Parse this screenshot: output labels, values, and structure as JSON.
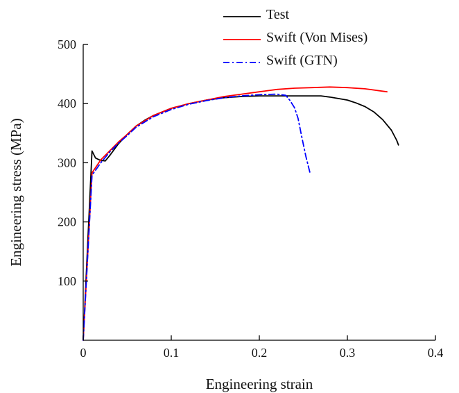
{
  "chart_data": {
    "type": "line",
    "xlabel": "Engineering strain",
    "ylabel": "Engineering stress (MPa)",
    "xlim": [
      0,
      0.4
    ],
    "ylim": [
      0,
      500
    ],
    "x_ticks": [
      0,
      0.1,
      0.2,
      0.3,
      0.4
    ],
    "x_tick_labels": [
      "0",
      "0.1",
      "0.2",
      "0.3",
      "0.4"
    ],
    "y_ticks": [
      100,
      200,
      300,
      400,
      500
    ],
    "y_tick_labels": [
      "100",
      "200",
      "300",
      "400",
      "500"
    ],
    "grid": false,
    "legend_position": "top-right",
    "series": [
      {
        "name": "Test",
        "color": "#000000",
        "dash": "solid",
        "points": [
          [
            0,
            0
          ],
          [
            0.01,
            320
          ],
          [
            0.014,
            308
          ],
          [
            0.018,
            305
          ],
          [
            0.021,
            304
          ],
          [
            0.025,
            303
          ],
          [
            0.03,
            312
          ],
          [
            0.04,
            332
          ],
          [
            0.05,
            348
          ],
          [
            0.06,
            362
          ],
          [
            0.07,
            372
          ],
          [
            0.08,
            380
          ],
          [
            0.1,
            392
          ],
          [
            0.12,
            400
          ],
          [
            0.14,
            406
          ],
          [
            0.16,
            410
          ],
          [
            0.18,
            412
          ],
          [
            0.2,
            413
          ],
          [
            0.22,
            413
          ],
          [
            0.24,
            413
          ],
          [
            0.26,
            413
          ],
          [
            0.27,
            413
          ],
          [
            0.28,
            411
          ],
          [
            0.3,
            406
          ],
          [
            0.31,
            401
          ],
          [
            0.32,
            395
          ],
          [
            0.33,
            386
          ],
          [
            0.34,
            373
          ],
          [
            0.35,
            355
          ],
          [
            0.356,
            338
          ],
          [
            0.358,
            330
          ]
        ]
      },
      {
        "name": "Swift (Von Mises)",
        "color": "#ff0000",
        "dash": "solid",
        "points": [
          [
            0,
            0
          ],
          [
            0.01,
            283
          ],
          [
            0.02,
            305
          ],
          [
            0.03,
            320
          ],
          [
            0.04,
            335
          ],
          [
            0.05,
            348
          ],
          [
            0.06,
            362
          ],
          [
            0.08,
            380
          ],
          [
            0.1,
            392
          ],
          [
            0.12,
            400
          ],
          [
            0.14,
            406
          ],
          [
            0.16,
            412
          ],
          [
            0.18,
            416
          ],
          [
            0.2,
            420
          ],
          [
            0.22,
            424
          ],
          [
            0.24,
            426
          ],
          [
            0.26,
            427
          ],
          [
            0.28,
            428
          ],
          [
            0.3,
            427
          ],
          [
            0.32,
            425
          ],
          [
            0.345,
            420
          ]
        ]
      },
      {
        "name": "Swift (GTN)",
        "color": "#0000ff",
        "dash": "dashdot",
        "points": [
          [
            0,
            0
          ],
          [
            0.01,
            279
          ],
          [
            0.02,
            300
          ],
          [
            0.03,
            318
          ],
          [
            0.04,
            333
          ],
          [
            0.05,
            346
          ],
          [
            0.06,
            360
          ],
          [
            0.08,
            378
          ],
          [
            0.1,
            390
          ],
          [
            0.12,
            399
          ],
          [
            0.14,
            405
          ],
          [
            0.16,
            410
          ],
          [
            0.18,
            413
          ],
          [
            0.2,
            415
          ],
          [
            0.22,
            416
          ],
          [
            0.23,
            414
          ],
          [
            0.235,
            405
          ],
          [
            0.24,
            393
          ],
          [
            0.244,
            375
          ],
          [
            0.248,
            345
          ],
          [
            0.253,
            310
          ],
          [
            0.258,
            280
          ]
        ]
      }
    ]
  }
}
